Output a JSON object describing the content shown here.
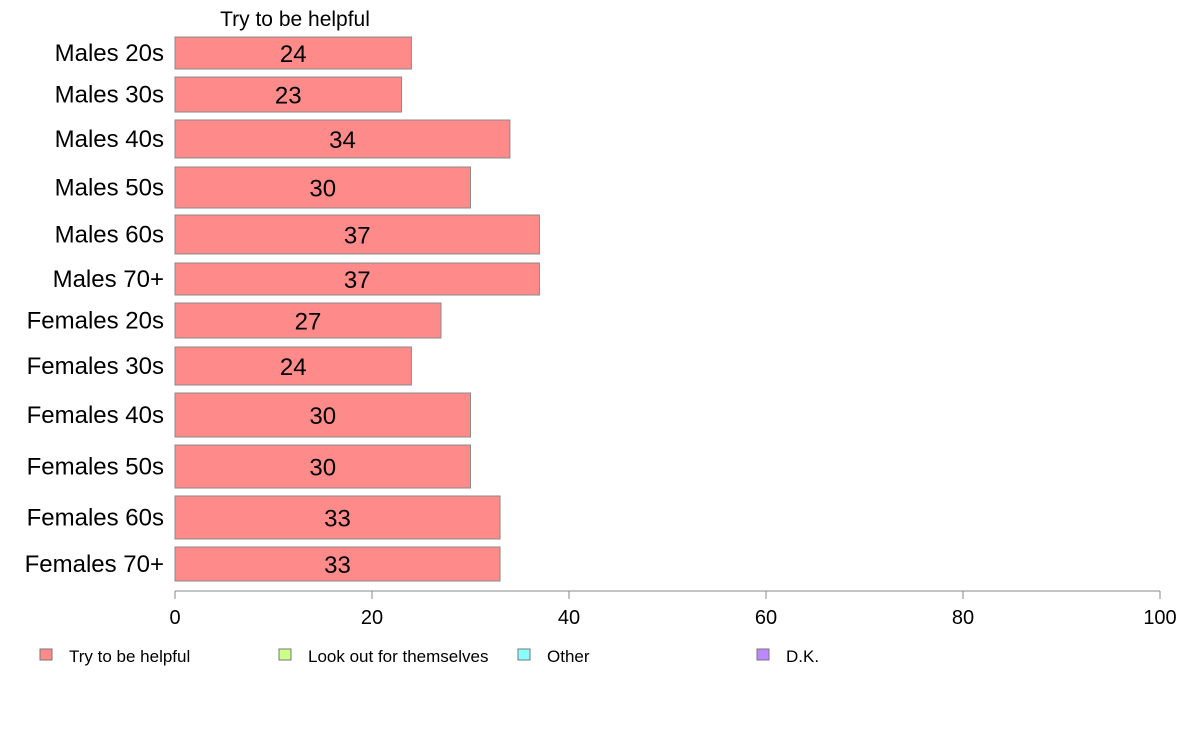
{
  "chart_data": {
    "type": "bar",
    "orientation": "horizontal",
    "categories": [
      "Males 20s",
      "Males 30s",
      "Males 40s",
      "Males 50s",
      "Males 60s",
      "Males 70+",
      "Females 20s",
      "Females 30s",
      "Females 40s",
      "Females 50s",
      "Females 60s",
      "Females 70+"
    ],
    "series": [
      {
        "name": "Try to be helpful",
        "color": "#ff8a8a",
        "values": [
          24,
          23,
          34,
          30,
          37,
          37,
          27,
          24,
          30,
          30,
          33,
          33
        ]
      }
    ],
    "data_labels": [
      "24",
      "23",
      "34",
      "30",
      "37",
      "37",
      "27",
      "24",
      "30",
      "30",
      "33",
      "33"
    ],
    "panel_title": "Try to be helpful",
    "xlim": [
      0,
      100
    ],
    "x_ticks": [
      0,
      20,
      40,
      60,
      80,
      100
    ],
    "x_tick_labels": [
      "0",
      "20",
      "40",
      "60",
      "80",
      "100"
    ],
    "grid": false,
    "legend_position": "bottom",
    "legend": [
      {
        "label": "Try to be helpful",
        "color": "#ff8a8a"
      },
      {
        "label": "Look out for themselves",
        "color": "#ccff88"
      },
      {
        "label": "Other",
        "color": "#88ffff"
      },
      {
        "label": "D.K.",
        "color": "#bb88ff"
      }
    ]
  }
}
